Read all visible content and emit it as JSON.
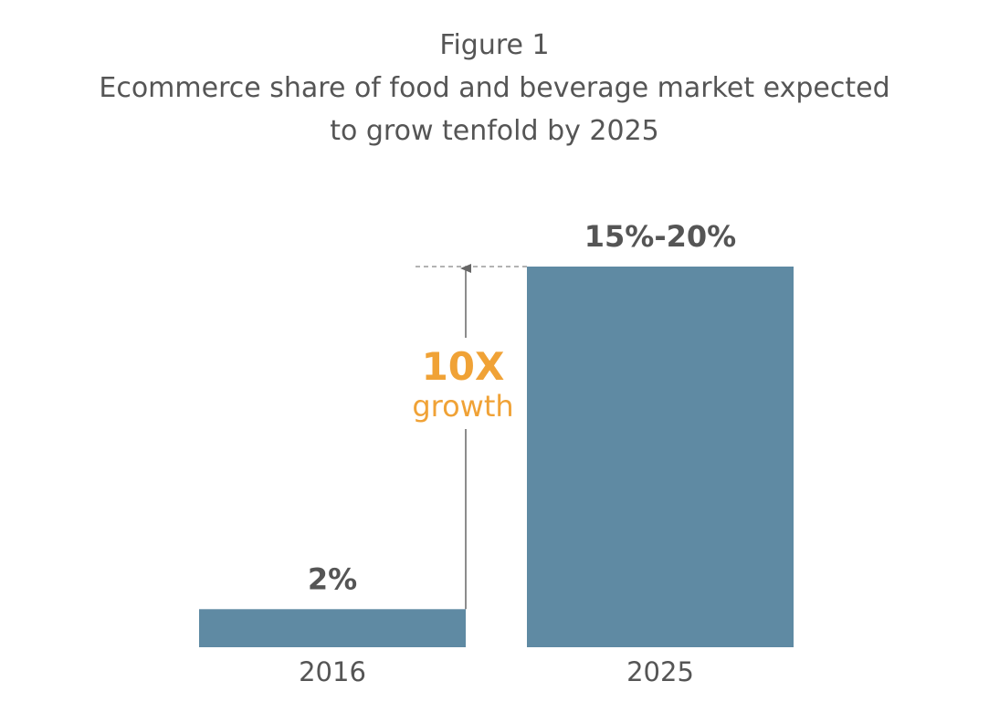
{
  "figure_label": "Figure 1",
  "title_lines": [
    "Ecommerce share of food and beverage market expected",
    "to grow tenfold by 2025"
  ],
  "colors": {
    "bar": "#5f8aa3",
    "text": "#555555",
    "accent": "#f0a236",
    "arrow": "#666666",
    "guide": "#9a9a9a"
  },
  "chart_data": {
    "type": "bar",
    "title": "Ecommerce share of food and beverage market expected to grow tenfold by 2025",
    "categories": [
      "2016",
      "2025"
    ],
    "values": [
      2,
      20
    ],
    "value_labels": [
      "2%",
      "15%-20%"
    ],
    "xlabel": "",
    "ylabel": "",
    "ylim": [
      0,
      20
    ],
    "grid": false,
    "annotation": {
      "headline": "10X",
      "subtext": "growth",
      "from": 2,
      "to": 20
    }
  }
}
